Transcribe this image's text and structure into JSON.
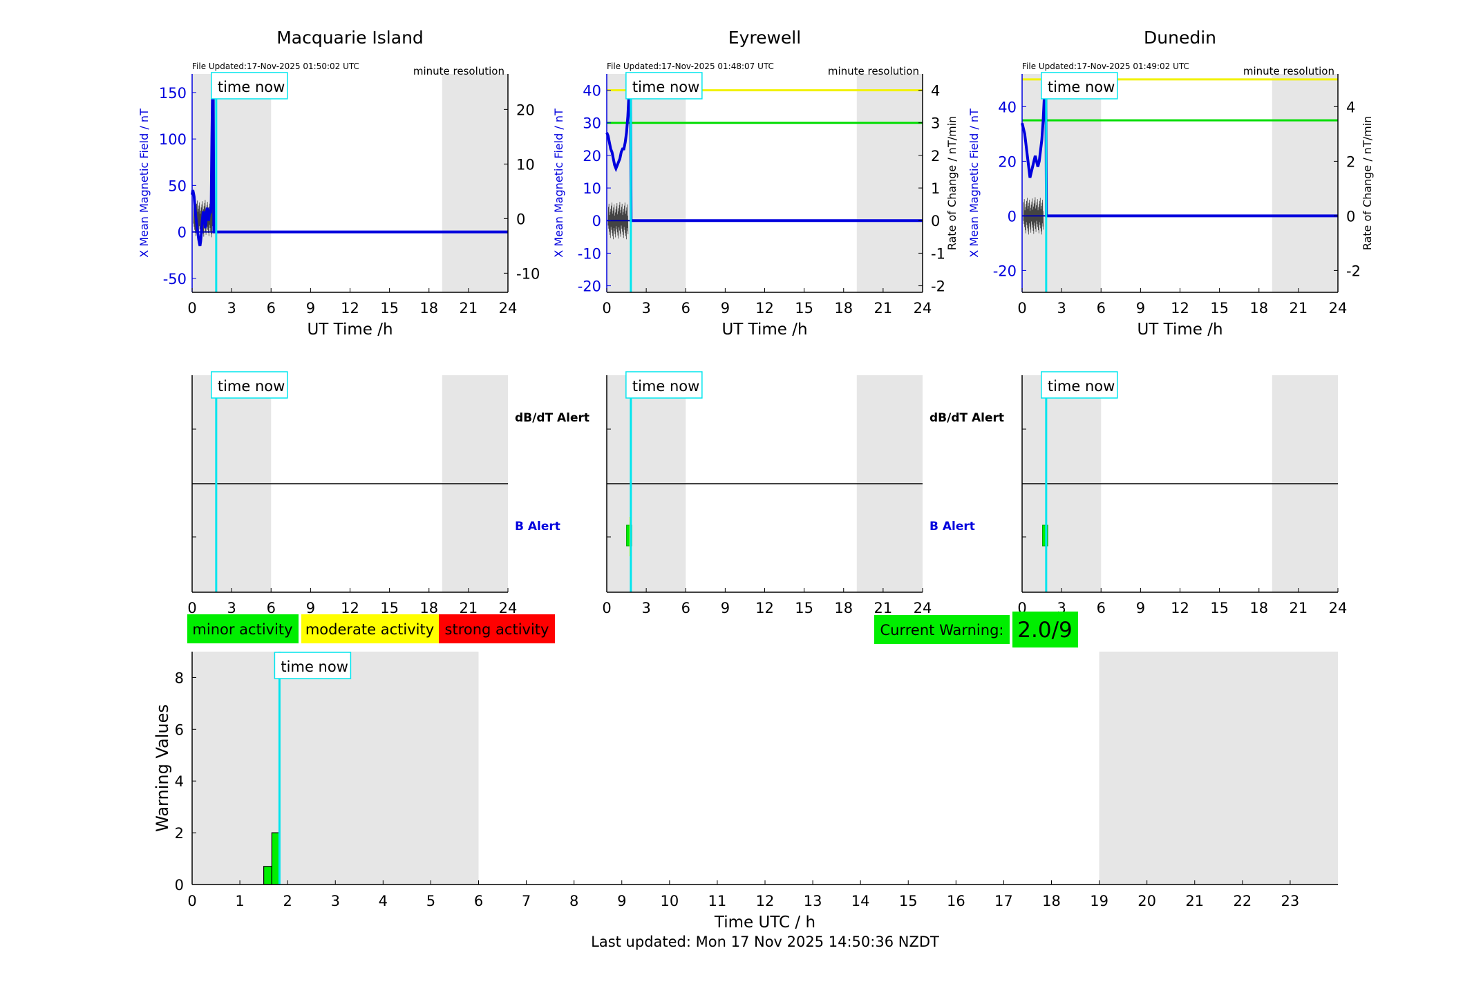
{
  "stations": [
    {
      "title": "Macquarie Island",
      "file_updated": "File Updated:17-Nov-2025 01:50:02 UTC",
      "resolution": "minute resolution",
      "ylabel_left": "X Mean Magnetic Field / nT",
      "ylabel_right": "",
      "ylim_left": [
        -65,
        170
      ],
      "ylim_right": [
        -13.5,
        26.5
      ],
      "yticks_left": [
        -50,
        0,
        50,
        100,
        150
      ],
      "yticks_right": [
        -10,
        0,
        10,
        20
      ],
      "threshold_lines": [],
      "x_field": [
        0,
        0.05,
        0.1,
        0.15,
        0.2,
        0.25,
        0.3,
        0.35,
        0.4,
        0.45,
        0.5,
        0.55,
        0.6,
        0.65,
        0.7,
        0.75,
        0.8,
        0.85,
        0.9,
        0.95,
        1.0,
        1.05,
        1.1,
        1.15,
        1.2,
        1.25,
        1.3,
        1.35,
        1.4,
        1.45,
        1.5,
        1.55,
        1.6,
        1.65,
        1.7,
        1.75,
        1.8,
        1.85,
        1.9,
        1.95,
        2.0,
        24
      ],
      "y_field": [
        40,
        45,
        42,
        38,
        30,
        20,
        14,
        8,
        2,
        -3,
        -8,
        -12,
        -15,
        -10,
        -2,
        8,
        16,
        22,
        20,
        12,
        4,
        10,
        22,
        26,
        20,
        12,
        18,
        24,
        20,
        28,
        100,
        150,
        170,
        0,
        0,
        0,
        0,
        0,
        0,
        0,
        0,
        0
      ]
    },
    {
      "title": "Eyrewell",
      "file_updated": "File Updated:17-Nov-2025 01:48:07 UTC",
      "resolution": "minute resolution",
      "ylabel_left": "X Mean Magnetic Field / nT",
      "ylabel_right": "Rate of Change / nT/min",
      "ylim_left": [
        -22,
        45
      ],
      "ylim_right": [
        -2.2,
        4.5
      ],
      "yticks_left": [
        -20,
        -10,
        0,
        10,
        20,
        30,
        40
      ],
      "yticks_right": [
        -2,
        -1,
        0,
        1,
        2,
        3,
        4
      ],
      "threshold_lines": [
        {
          "value": 4,
          "color": "#f2f200"
        },
        {
          "value": 3,
          "color": "#00dd00"
        }
      ],
      "x_field": [
        0,
        0.1,
        0.2,
        0.3,
        0.4,
        0.5,
        0.6,
        0.7,
        0.8,
        0.9,
        1.0,
        1.1,
        1.2,
        1.3,
        1.4,
        1.5,
        1.6,
        1.7,
        1.75,
        1.8,
        1.85,
        1.9,
        24
      ],
      "y_field": [
        27,
        26,
        24,
        22,
        21,
        19,
        17,
        16,
        17,
        18,
        19,
        21,
        22,
        22,
        24,
        27,
        32,
        40,
        45,
        45,
        0,
        0,
        0
      ]
    },
    {
      "title": "Dunedin",
      "file_updated": "File Updated:17-Nov-2025 01:49:02 UTC",
      "resolution": "minute resolution",
      "ylabel_left": "X Mean Magnetic Field / nT",
      "ylabel_right": "Rate of Change / nT/min",
      "ylim_left": [
        -28,
        52
      ],
      "ylim_right": [
        -2.8,
        5.2
      ],
      "yticks_left": [
        -20,
        0,
        20,
        40
      ],
      "yticks_right": [
        -2,
        0,
        2,
        4
      ],
      "threshold_lines": [
        {
          "value": 5,
          "color": "#f2f200"
        },
        {
          "value": 3.5,
          "color": "#00dd00"
        }
      ],
      "x_field": [
        0,
        0.1,
        0.2,
        0.3,
        0.4,
        0.5,
        0.6,
        0.7,
        0.8,
        0.9,
        1.0,
        1.1,
        1.2,
        1.3,
        1.4,
        1.5,
        1.6,
        1.7,
        1.75,
        1.8,
        1.85,
        1.9,
        24
      ],
      "y_field": [
        34,
        32,
        30,
        26,
        22,
        18,
        14,
        16,
        18,
        20,
        22,
        20,
        18,
        20,
        24,
        28,
        35,
        45,
        50,
        52,
        0,
        0,
        0
      ]
    }
  ],
  "top_xlabel": "UT Time /h",
  "top_xticks": [
    0,
    3,
    6,
    9,
    12,
    15,
    18,
    21,
    24
  ],
  "night_bands": [
    [
      0,
      6
    ],
    [
      19,
      24
    ]
  ],
  "time_now": 1.83,
  "time_now_label": "time now",
  "alert_labels": {
    "dbdt": "dB/dT Alert",
    "b": "B Alert"
  },
  "alert_bars": [
    {
      "station": 1,
      "x0": 1.5,
      "x1": 1.9,
      "color": "#00ee00"
    },
    {
      "station": 2,
      "x0": 1.55,
      "x1": 1.95,
      "color": "#00ee00"
    }
  ],
  "legend": {
    "minor": "minor activity",
    "moderate": "moderate activity",
    "strong": "strong activity",
    "minor_color": "#00ee00",
    "moderate_color": "#ffff00",
    "strong_color": "#ff0000"
  },
  "current_warning": {
    "label": "Current Warning:",
    "value": "2.0/9",
    "color": "#00ee00"
  },
  "chart_data": {
    "type": "bar",
    "title": "",
    "xlabel": "Time UTC / h",
    "ylabel": "Warning Values",
    "xlim": [
      0,
      24
    ],
    "ylim": [
      0,
      9
    ],
    "xticks": [
      0,
      1,
      2,
      3,
      4,
      5,
      6,
      7,
      8,
      9,
      10,
      11,
      12,
      13,
      14,
      15,
      16,
      17,
      18,
      19,
      20,
      21,
      22,
      23
    ],
    "yticks": [
      0,
      2,
      4,
      6,
      8
    ],
    "bars": [
      {
        "x0": 1.5,
        "x1": 1.67,
        "value": 0.7
      },
      {
        "x0": 1.67,
        "x1": 1.83,
        "value": 2.0
      }
    ],
    "night_bands": [
      [
        0,
        6
      ],
      [
        19,
        24
      ]
    ],
    "time_now": 1.83
  },
  "footer": "Last updated: Mon 17 Nov 2025 14:50:36 NZDT"
}
